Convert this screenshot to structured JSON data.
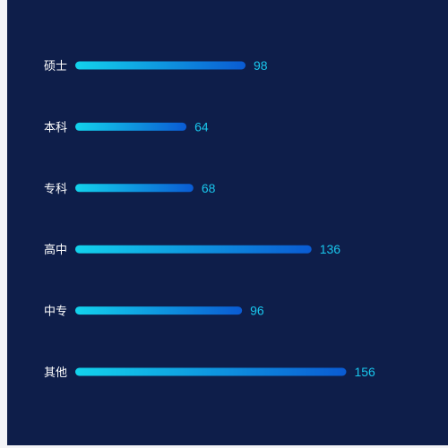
{
  "chart_data": {
    "type": "bar",
    "orientation": "horizontal",
    "categories": [
      "硕士",
      "本科",
      "专科",
      "高中",
      "中专",
      "其他"
    ],
    "values": [
      98,
      64,
      68,
      136,
      96,
      156
    ],
    "title": "",
    "xlabel": "",
    "ylabel": "",
    "grid": false,
    "colors": {
      "background": "#0e1e4a",
      "bar_gradient_start": "#13d3ec",
      "bar_gradient_end": "#0a5bd3",
      "category_label": "#ffffff",
      "value_label": "#19c6ec"
    }
  }
}
